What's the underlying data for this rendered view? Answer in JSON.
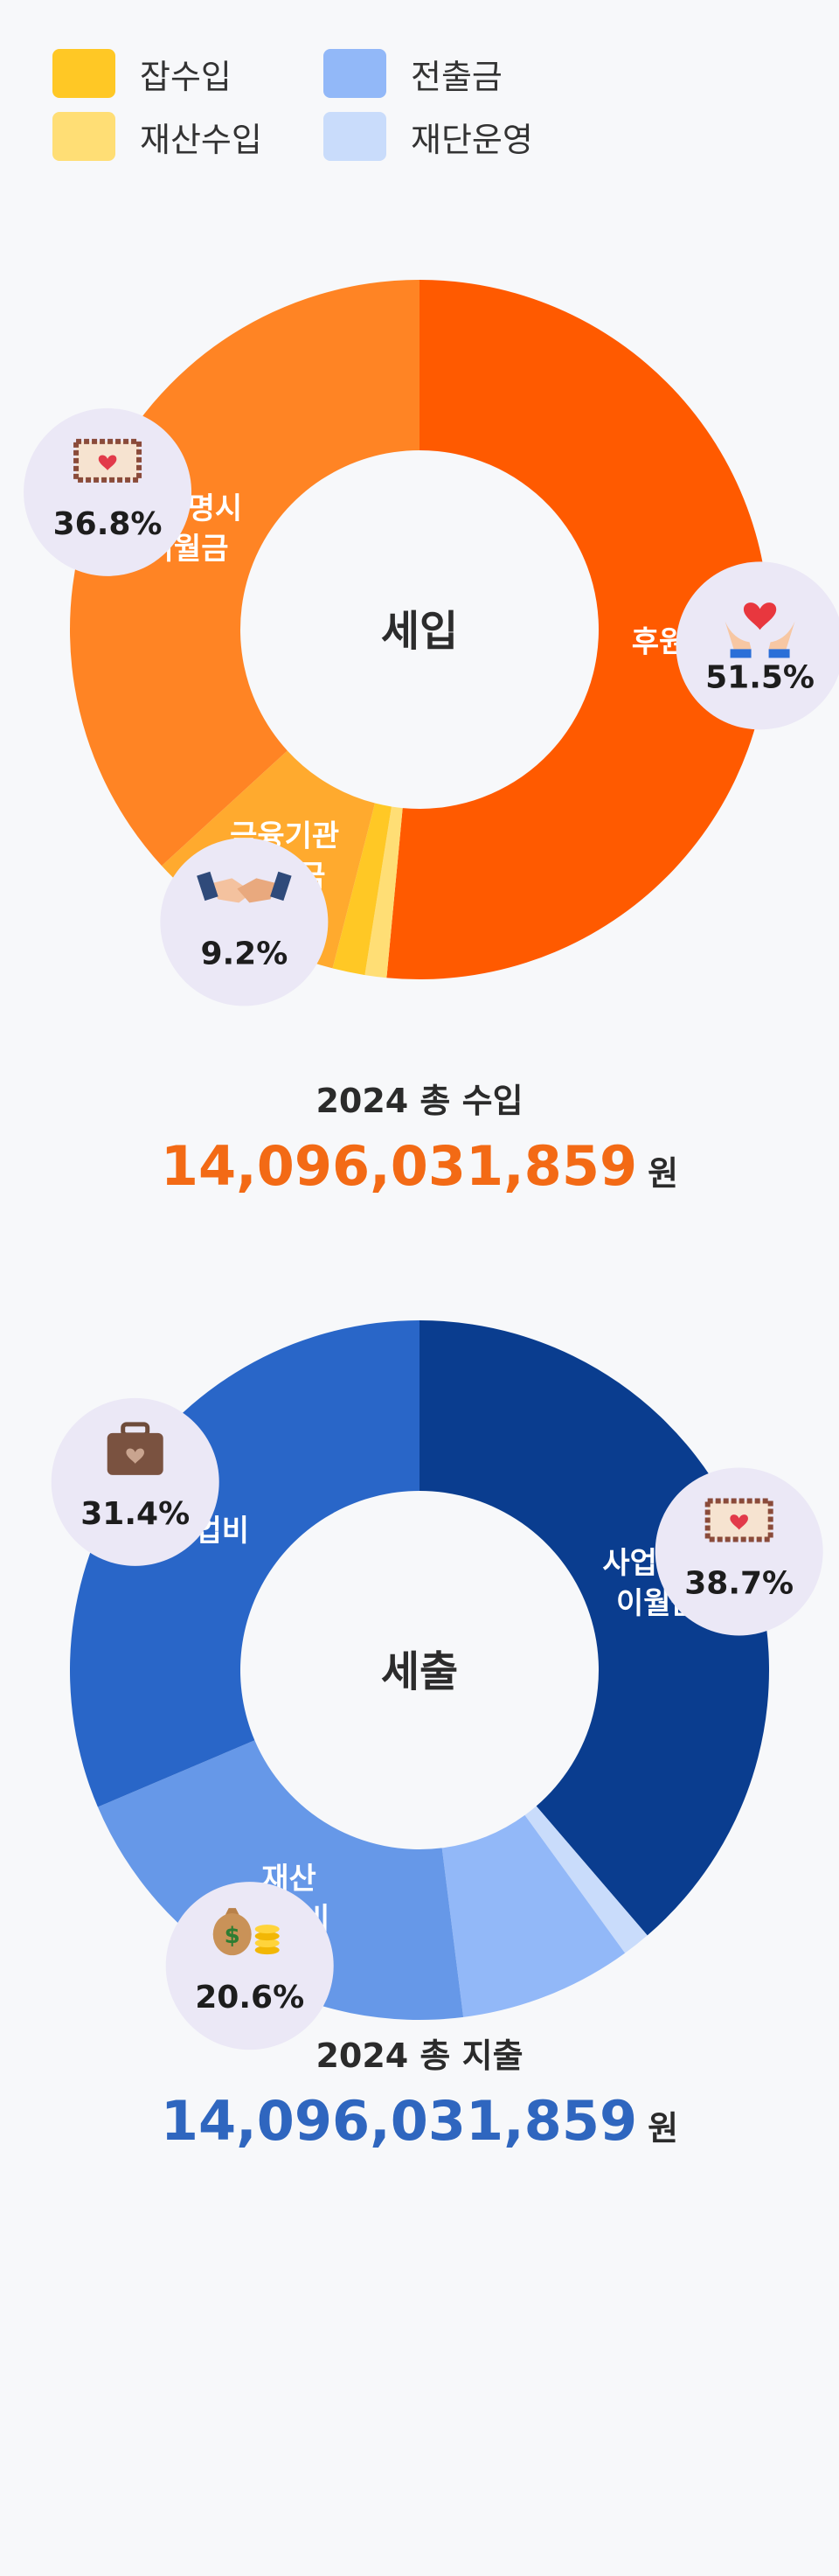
{
  "legend": [
    {
      "label": "잡수입",
      "color": "#ffc825"
    },
    {
      "label": "재산수입",
      "color": "#ffde75"
    },
    {
      "label": "전출금",
      "color": "#92b8f8"
    },
    {
      "label": "재단운영",
      "color": "#c9dcfb"
    }
  ],
  "income": {
    "center": "세입",
    "title": "2024 총 수입",
    "amount": "14,096,031,859",
    "unit": "원"
  },
  "expense": {
    "center": "세출",
    "title": "2024 총 지출",
    "amount": "14,096,031,859",
    "unit": "원"
  },
  "chart_data": [
    {
      "type": "pie",
      "title": "세입",
      "series": [
        {
          "values": [
            51.5,
            1.0,
            1.5,
            9.2,
            36.8
          ]
        }
      ],
      "categories": [
        "후원금",
        "재산수입",
        "잡수입",
        "금융기관 차입금",
        "사업명시 이월금"
      ],
      "colors": [
        "#ff5a00",
        "#ffde75",
        "#ffc825",
        "#ffaa2e",
        "#ff8424"
      ],
      "labels": [
        "후원금",
        "",
        "",
        "금융기관\n차입금",
        "사업명시\n이월금"
      ],
      "badges": [
        {
          "slice": 0,
          "pct": "51.5%",
          "icon": "hands-heart-icon"
        },
        {
          "slice": 3,
          "pct": "9.2%",
          "icon": "handshake-icon"
        },
        {
          "slice": 4,
          "pct": "36.8%",
          "icon": "stamp-heart-icon"
        }
      ]
    },
    {
      "type": "pie",
      "title": "세출",
      "series": [
        {
          "values": [
            38.7,
            1.3,
            8.0,
            20.6,
            31.4
          ]
        }
      ],
      "categories": [
        "사업명시 이월금",
        "재단운영",
        "전출금",
        "재산 조성비",
        "사업비"
      ],
      "colors": [
        "#0a3d8f",
        "#c9dcfb",
        "#92b8f8",
        "#6698e8",
        "#2966c8"
      ],
      "labels": [
        "사업명시\n이월금",
        "",
        "",
        "재산\n조성비",
        "사업비"
      ],
      "badges": [
        {
          "slice": 0,
          "pct": "38.7%",
          "icon": "stamp-heart-icon"
        },
        {
          "slice": 3,
          "pct": "20.6%",
          "icon": "money-bag-icon"
        },
        {
          "slice": 4,
          "pct": "31.4%",
          "icon": "briefcase-heart-icon"
        }
      ]
    }
  ]
}
